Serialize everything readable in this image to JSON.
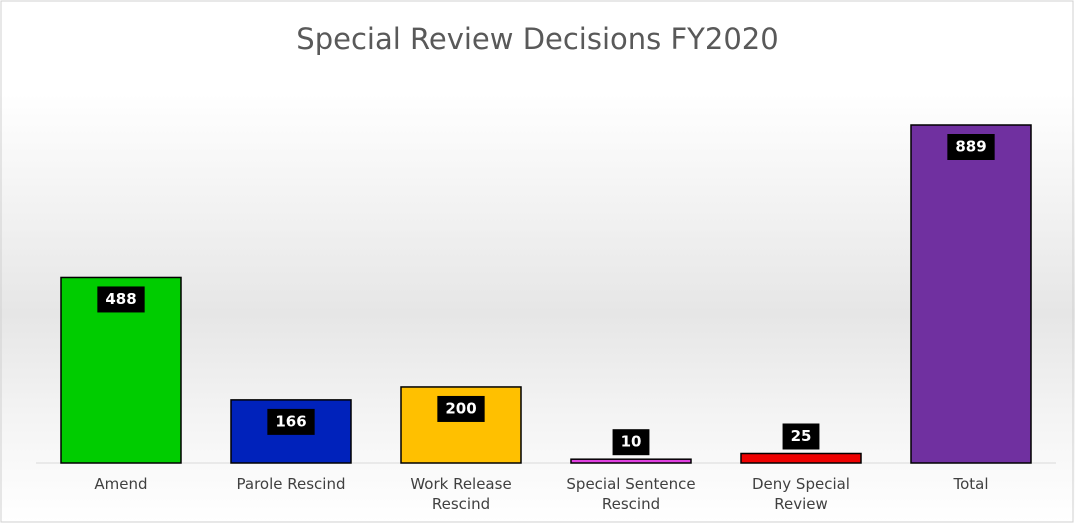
{
  "chart_data": {
    "type": "bar",
    "title": "Special Review Decisions FY2020",
    "categories": [
      "Amend",
      "Parole Rescind",
      "Work Release Rescind",
      "Special Sentence Rescind",
      "Deny Special Review",
      "Total"
    ],
    "values": [
      488,
      166,
      200,
      10,
      25,
      889
    ],
    "colors": [
      "#00cc00",
      "#0022bb",
      "#ffc000",
      "#e040e0",
      "#ee0000",
      "#7030a0"
    ]
  }
}
